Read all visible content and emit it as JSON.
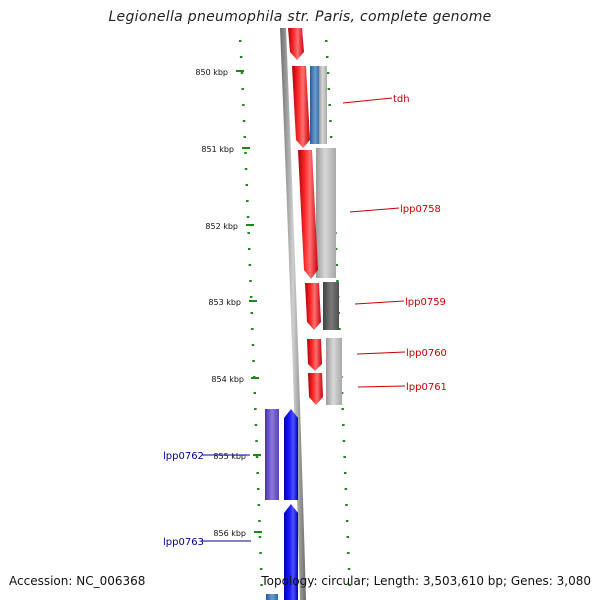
{
  "header": {
    "title": "Legionella pneumophila str. Paris, complete genome"
  },
  "footer": {
    "accession": "Accession: NC_006368",
    "summary": "Topology: circular; Length: 3,503,610 bp; Genes: 3,080"
  },
  "axis": {
    "unit": "kbp",
    "ticks": [
      "850 kbp",
      "851 kbp",
      "852 kbp",
      "853 kbp",
      "854 kbp",
      "855 kbp",
      "856 kbp"
    ]
  },
  "genes": [
    {
      "name": "tdh",
      "strand": "forward"
    },
    {
      "name": "lpp0758",
      "strand": "forward"
    },
    {
      "name": "lpp0759",
      "strand": "forward"
    },
    {
      "name": "lpp0760",
      "strand": "forward"
    },
    {
      "name": "lpp0761",
      "strand": "forward"
    },
    {
      "name": "lpp0762",
      "strand": "reverse"
    },
    {
      "name": "lpp0763",
      "strand": "reverse"
    }
  ],
  "colors": {
    "forward_gene": "#e8141a",
    "reverse_gene": "#1010e0",
    "forward_label": "#cc0000",
    "reverse_label": "#000099",
    "tick": "#1a8a1a",
    "backbone": "#8a8a8a",
    "feature_grey": "#b8b8b8",
    "feature_dark": "#606060",
    "feature_steel": "#4a7fb0",
    "feature_purple": "#6a50c8"
  }
}
